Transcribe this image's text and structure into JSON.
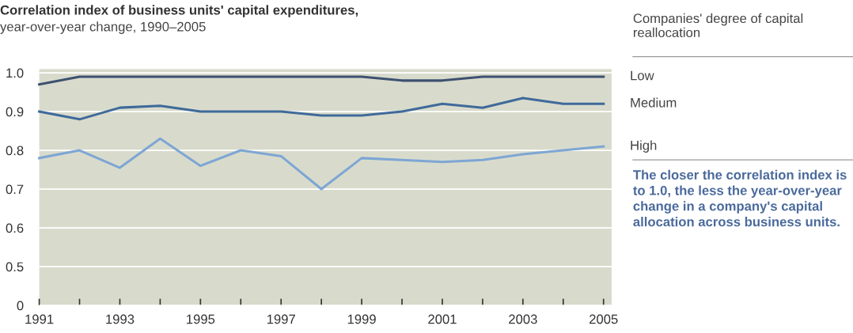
{
  "chart_data": {
    "type": "line",
    "title": "Correlation index of business units' capital expenditures,",
    "subtitle": "year-over-year change, 1990–2005",
    "legend_title": "Companies' degree of capital reallocation",
    "x": [
      1991,
      1992,
      1993,
      1994,
      1995,
      1996,
      1997,
      1998,
      1999,
      2000,
      2001,
      2002,
      2003,
      2004,
      2005
    ],
    "series": [
      {
        "name": "Low",
        "color": "#3d5170",
        "values": [
          0.97,
          0.99,
          0.99,
          0.99,
          0.99,
          0.99,
          0.99,
          0.99,
          0.99,
          0.98,
          0.98,
          0.99,
          0.99,
          0.99,
          0.99
        ]
      },
      {
        "name": "Medium",
        "color": "#3f6a9a",
        "values": [
          0.9,
          0.88,
          0.91,
          0.915,
          0.9,
          0.9,
          0.9,
          0.89,
          0.89,
          0.9,
          0.92,
          0.91,
          0.935,
          0.92,
          0.92
        ]
      },
      {
        "name": "High",
        "color": "#7ea6d4",
        "values": [
          0.78,
          0.8,
          0.755,
          0.83,
          0.76,
          0.8,
          0.785,
          0.7,
          0.78,
          0.775,
          0.77,
          0.775,
          0.79,
          0.8,
          0.81
        ]
      }
    ],
    "xlim": [
      1991,
      2005.2
    ],
    "xticks": [
      1991,
      {
        "value": 1992,
        "label": null
      },
      1993,
      {
        "value": 1994,
        "label": null
      },
      1995,
      {
        "value": 1996,
        "label": null
      },
      1997,
      {
        "value": 1998,
        "label": null
      },
      1999,
      {
        "value": 2000,
        "label": null
      },
      2001,
      {
        "value": 2002,
        "label": null
      },
      2003,
      {
        "value": 2004,
        "label": null
      },
      2005
    ],
    "ylim": [
      0.4,
      1.01
    ],
    "yticks": [
      {
        "value": 0.4,
        "label": "0"
      },
      0.5,
      0.6,
      0.7,
      0.8,
      0.9,
      {
        "value": 1.0,
        "label": "1.0"
      }
    ],
    "grid": "y",
    "marker": "none",
    "line_style": "solid",
    "annotations": [
      "The closer the correlation index is to 1.0, the less the year-over-year change in a company's capital allocation across business units."
    ]
  }
}
